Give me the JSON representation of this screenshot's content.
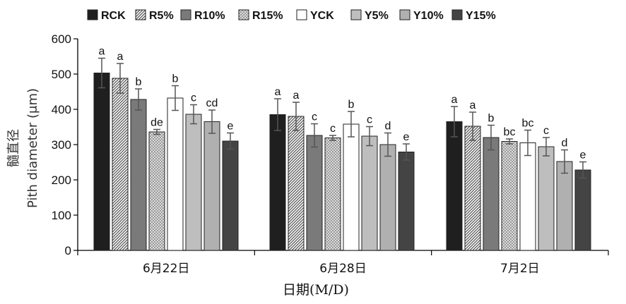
{
  "chart_data": {
    "type": "bar",
    "xlabel": "日期(M/D)",
    "ylabel_cn": "髓直径",
    "ylabel": "Pith diameter (μm)",
    "ylim": [
      0,
      600
    ],
    "yticks": [
      0,
      100,
      200,
      300,
      400,
      500,
      600
    ],
    "grid": false,
    "legend_position": "top",
    "categories": [
      "6月22日",
      "6月28日",
      "7月2日"
    ],
    "series": [
      {
        "name": "RCK",
        "values": [
          503,
          385,
          365
        ],
        "errors": [
          42,
          45,
          43
        ],
        "letters": [
          "a",
          "a",
          "a"
        ],
        "color": "#1f1f1f",
        "pattern": "solid"
      },
      {
        "name": "R5%",
        "values": [
          488,
          380,
          352
        ],
        "errors": [
          42,
          40,
          40
        ],
        "letters": [
          "a",
          "a",
          "a"
        ],
        "color": "#8a8a8a",
        "pattern": "hatch"
      },
      {
        "name": "R10%",
        "values": [
          428,
          326,
          320
        ],
        "errors": [
          30,
          33,
          35
        ],
        "letters": [
          "b",
          "c",
          "b"
        ],
        "color": "#7a7a7a",
        "pattern": "solid"
      },
      {
        "name": "R15%",
        "values": [
          336,
          319,
          309
        ],
        "errors": [
          7,
          7,
          7
        ],
        "letters": [
          "de",
          "c",
          "bc"
        ],
        "color": "#c8c8c8",
        "pattern": "dots"
      },
      {
        "name": "YCK",
        "values": [
          432,
          358,
          305
        ],
        "errors": [
          35,
          36,
          36
        ],
        "letters": [
          "b",
          "b",
          "bc"
        ],
        "color": "#ffffff",
        "pattern": "solid"
      },
      {
        "name": "Y5%",
        "values": [
          386,
          324,
          294
        ],
        "errors": [
          27,
          27,
          26
        ],
        "letters": [
          "c",
          "c",
          "c"
        ],
        "color": "#bebebe",
        "pattern": "solid"
      },
      {
        "name": "Y10%",
        "values": [
          365,
          300,
          252
        ],
        "errors": [
          33,
          33,
          33
        ],
        "letters": [
          "cd",
          "d",
          "d"
        ],
        "color": "#b0b0b0",
        "pattern": "solid"
      },
      {
        "name": "Y15%",
        "values": [
          310,
          279,
          228
        ],
        "errors": [
          23,
          23,
          23
        ],
        "letters": [
          "e",
          "e",
          "e"
        ],
        "color": "#444444",
        "pattern": "solid"
      }
    ]
  }
}
